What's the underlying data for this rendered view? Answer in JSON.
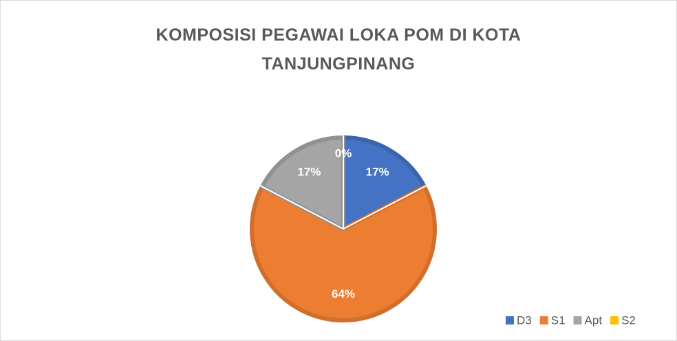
{
  "chart_data": {
    "type": "pie",
    "title": "KOMPOSISI PEGAWAI LOKA POM DI KOTA TANJUNGPINANG",
    "categories": [
      "D3",
      "S1",
      "Apt",
      "S2"
    ],
    "values": [
      17,
      64,
      17,
      0
    ],
    "value_labels": [
      "17%",
      "64%",
      "17%",
      "0%"
    ],
    "colors": [
      "#4472c4",
      "#ed7d31",
      "#a5a5a5",
      "#ffc000"
    ],
    "legend": "bottom-right"
  }
}
